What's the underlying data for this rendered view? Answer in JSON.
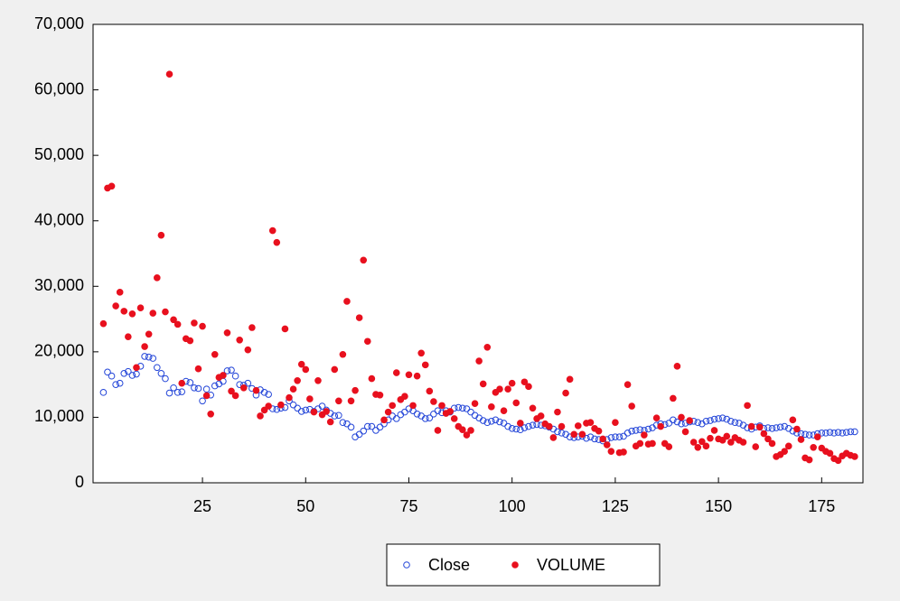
{
  "chart_data": {
    "type": "scatter",
    "x": [
      1,
      2,
      3,
      4,
      5,
      6,
      7,
      8,
      9,
      10,
      11,
      12,
      13,
      14,
      15,
      16,
      17,
      18,
      19,
      20,
      21,
      22,
      23,
      24,
      25,
      26,
      27,
      28,
      29,
      30,
      31,
      32,
      33,
      34,
      35,
      36,
      37,
      38,
      39,
      40,
      41,
      42,
      43,
      44,
      45,
      46,
      47,
      48,
      49,
      50,
      51,
      52,
      53,
      54,
      55,
      56,
      57,
      58,
      59,
      60,
      61,
      62,
      63,
      64,
      65,
      66,
      67,
      68,
      69,
      70,
      71,
      72,
      73,
      74,
      75,
      76,
      77,
      78,
      79,
      80,
      81,
      82,
      83,
      84,
      85,
      86,
      87,
      88,
      89,
      90,
      91,
      92,
      93,
      94,
      95,
      96,
      97,
      98,
      99,
      100,
      101,
      102,
      103,
      104,
      105,
      106,
      107,
      108,
      109,
      110,
      111,
      112,
      113,
      114,
      115,
      116,
      117,
      118,
      119,
      120,
      121,
      122,
      123,
      124,
      125,
      126,
      127,
      128,
      129,
      130,
      131,
      132,
      133,
      134,
      135,
      136,
      137,
      138,
      139,
      140,
      141,
      142,
      143,
      144,
      145,
      146,
      147,
      148,
      149,
      150,
      151,
      152,
      153,
      154,
      155,
      156,
      157,
      158,
      159,
      160,
      161,
      162,
      163,
      164,
      165,
      166,
      167,
      168,
      169,
      170,
      171,
      172,
      173,
      174,
      175,
      176,
      177,
      178,
      179,
      180,
      181,
      182,
      183
    ],
    "series": [
      {
        "name": "Close",
        "color": "#2345d8",
        "marker": "open",
        "values": [
          13800,
          16900,
          16300,
          15000,
          15200,
          16700,
          17000,
          16400,
          16600,
          17800,
          19300,
          19200,
          19000,
          17600,
          16700,
          15900,
          13700,
          14500,
          13800,
          13900,
          15500,
          15300,
          14500,
          14400,
          12500,
          14300,
          13400,
          14800,
          15100,
          15500,
          17100,
          17200,
          16300,
          15000,
          14900,
          15200,
          14400,
          13400,
          14200,
          13800,
          13500,
          11300,
          11200,
          11400,
          11500,
          12500,
          11900,
          11400,
          10900,
          11100,
          11200,
          10900,
          11300,
          11700,
          11100,
          10600,
          10200,
          10300,
          9200,
          9000,
          8500,
          7000,
          7400,
          7900,
          8600,
          8600,
          8000,
          8500,
          9000,
          9600,
          10200,
          9800,
          10400,
          10800,
          11300,
          11000,
          10500,
          10200,
          9800,
          9900,
          10500,
          11000,
          10700,
          11000,
          10800,
          11400,
          11500,
          11400,
          11300,
          10800,
          10300,
          9900,
          9500,
          9200,
          9400,
          9600,
          9300,
          9100,
          8600,
          8300,
          8200,
          8100,
          8400,
          8600,
          8800,
          8900,
          8800,
          8700,
          8500,
          8200,
          7800,
          7600,
          7400,
          7000,
          6900,
          7000,
          7100,
          6800,
          7000,
          6700,
          6600,
          6400,
          6600,
          6900,
          7000,
          7000,
          7100,
          7600,
          7900,
          8000,
          8100,
          8000,
          8200,
          8400,
          8800,
          9000,
          8900,
          9100,
          9600,
          9300,
          9000,
          9100,
          9300,
          9400,
          9200,
          9000,
          9400,
          9500,
          9700,
          9800,
          9900,
          9700,
          9400,
          9200,
          9100,
          8800,
          8400,
          8200,
          8500,
          8700,
          8300,
          8400,
          8300,
          8400,
          8500,
          8600,
          8300,
          7900,
          7600,
          7500,
          7400,
          7300,
          7300,
          7500,
          7600,
          7600,
          7700,
          7600,
          7700,
          7600,
          7700,
          7800,
          7800
        ]
      },
      {
        "name": "VOLUME",
        "color": "#e8101e",
        "marker": "filled",
        "values": [
          24300,
          45000,
          45300,
          27000,
          29100,
          26200,
          22300,
          25800,
          17600,
          26700,
          20800,
          22700,
          25900,
          31300,
          37800,
          26100,
          62400,
          24900,
          24200,
          15200,
          22000,
          21700,
          24400,
          17400,
          23900,
          13300,
          10500,
          19600,
          16100,
          16400,
          22900,
          14000,
          13300,
          21800,
          14500,
          20300,
          23700,
          14100,
          10200,
          11100,
          11700,
          38500,
          36700,
          11900,
          23500,
          13000,
          14300,
          15600,
          18100,
          17300,
          12800,
          10800,
          15600,
          10400,
          10900,
          9300,
          17300,
          12500,
          19600,
          27700,
          12500,
          14100,
          25200,
          34000,
          21600,
          15900,
          13500,
          13400,
          9600,
          10800,
          11800,
          16800,
          12700,
          13200,
          16500,
          11800,
          16300,
          19800,
          18000,
          14000,
          12400,
          8000,
          11800,
          10600,
          10900,
          9800,
          8600,
          8100,
          7300,
          8000,
          12100,
          18600,
          15100,
          20700,
          11600,
          13800,
          14300,
          11000,
          14300,
          15200,
          12200,
          9100,
          15400,
          14700,
          11400,
          9800,
          10200,
          9000,
          8600,
          6900,
          10800,
          8600,
          13700,
          15800,
          7400,
          8700,
          7400,
          9100,
          9200,
          8300,
          7900,
          6700,
          5800,
          4800,
          9200,
          4600,
          4700,
          15000,
          11700,
          5600,
          6000,
          7300,
          5900,
          6000,
          9900,
          8600,
          6000,
          5500,
          12900,
          17800,
          10000,
          7800,
          9500,
          6200,
          5400,
          6300,
          5600,
          6800,
          8000,
          6700,
          6500,
          7100,
          6200,
          6900,
          6500,
          6200,
          11800,
          8600,
          5500,
          8500,
          7500,
          6700,
          6000,
          4000,
          4300,
          4800,
          5600,
          9600,
          8200,
          6600,
          3800,
          3500,
          5400,
          7000,
          5300,
          4800,
          4500,
          3700,
          3400,
          4100,
          4500,
          4200,
          4000
        ]
      }
    ],
    "xlim": [
      -1.5,
      185
    ],
    "xticks": [
      25,
      50,
      75,
      100,
      125,
      150,
      175
    ],
    "ylim": [
      0,
      70000
    ],
    "yticks": [
      0,
      {
        "value": 10000,
        "label": "10,000"
      },
      {
        "value": 20000,
        "label": "20,000"
      },
      {
        "value": 30000,
        "label": "30,000"
      },
      {
        "value": 40000,
        "label": "40,000"
      },
      {
        "value": 50000,
        "label": "50,000"
      },
      {
        "value": 60000,
        "label": "60,000"
      },
      {
        "value": 70000,
        "label": "70,000"
      }
    ],
    "grid": false,
    "legend": "bottom"
  }
}
